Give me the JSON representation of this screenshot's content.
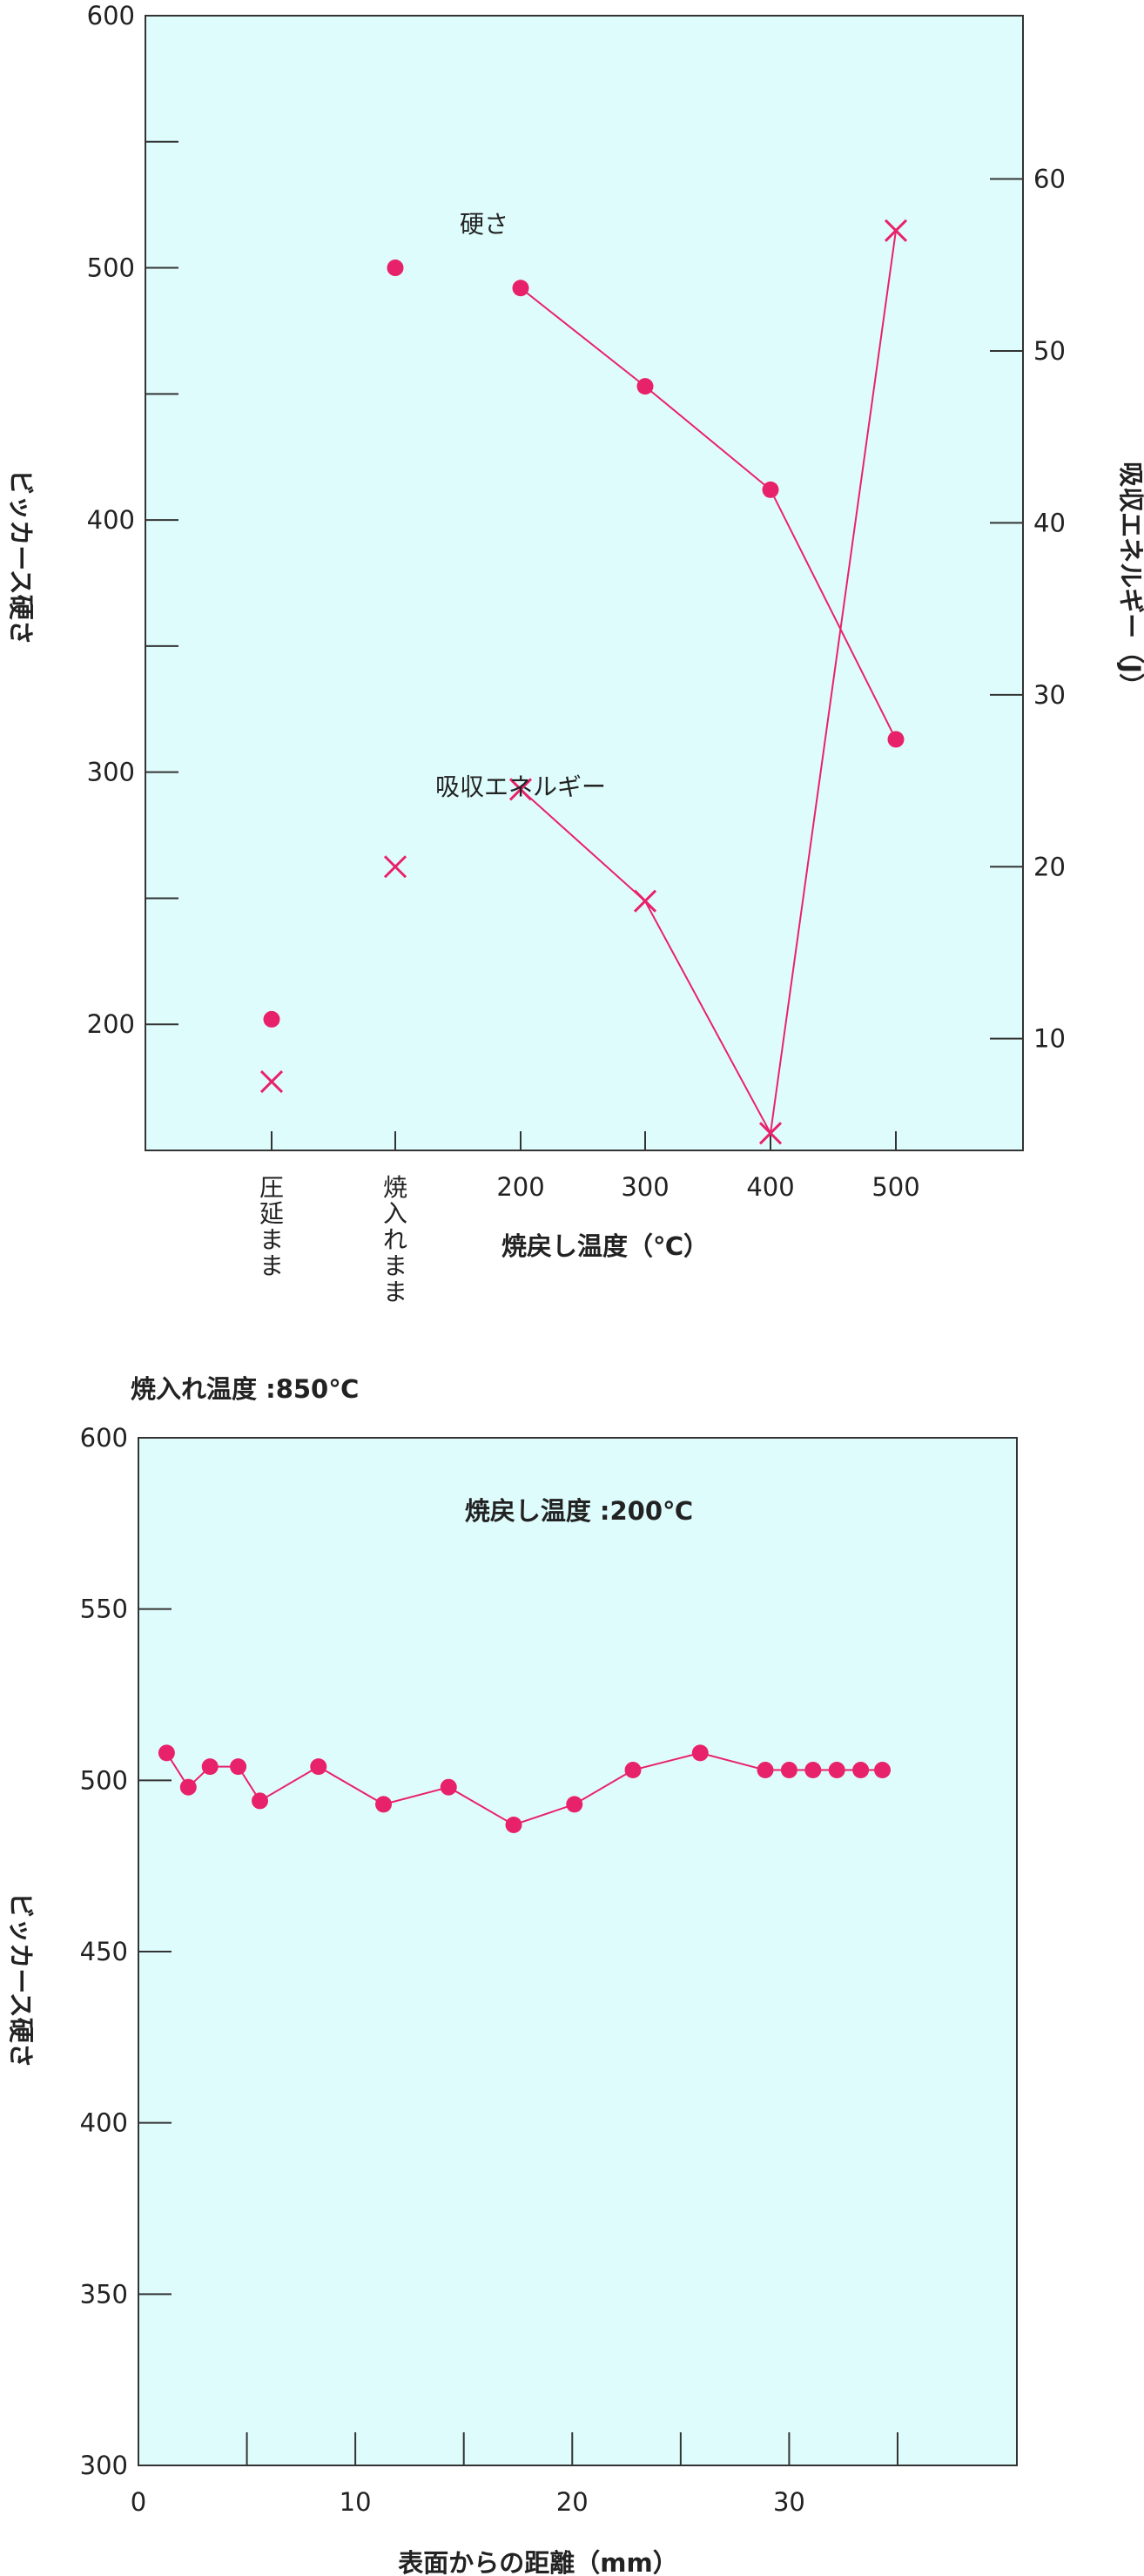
{
  "colors": {
    "plot_background": "#dffcfc",
    "series": "#e8226a",
    "axis": "#333333",
    "text": "#222222"
  },
  "chart_data": [
    {
      "type": "line",
      "x_axis": {
        "label": "焼戻し温度（℃）",
        "categories": [
          "圧延まま",
          "焼入れまま",
          "200",
          "300",
          "400",
          "500"
        ]
      },
      "y_axis_left": {
        "label": "ビッカース硬さ",
        "range": [
          150,
          600
        ],
        "ticks": [
          200,
          300,
          400,
          500,
          600
        ],
        "tick_labels": [
          "200",
          "300",
          "400",
          "500",
          "600"
        ],
        "minor_ticks": [
          250,
          350,
          450,
          550
        ]
      },
      "y_axis_right": {
        "label": "吸収エネルギー（J）",
        "range": [
          3.5,
          69.5
        ],
        "ticks": [
          10,
          20,
          30,
          40,
          50,
          60
        ],
        "tick_labels": [
          "10",
          "20",
          "30",
          "40",
          "50",
          "60"
        ]
      },
      "grid": false,
      "series": [
        {
          "name": "硬さ",
          "axis": "left",
          "marker": "circle",
          "points": [
            {
              "category": "圧延まま",
              "value": 202,
              "connected": false
            },
            {
              "category": "焼入れまま",
              "value": 500,
              "connected": false
            },
            {
              "category": "200",
              "value": 492,
              "connected": true
            },
            {
              "category": "300",
              "value": 453,
              "connected": true
            },
            {
              "category": "400",
              "value": 412,
              "connected": true
            },
            {
              "category": "500",
              "value": 313,
              "connected": true
            }
          ]
        },
        {
          "name": "吸収エネルギー",
          "axis": "right",
          "marker": "cross",
          "points": [
            {
              "category": "圧延まま",
              "value": 7.5,
              "connected": false
            },
            {
              "category": "焼入れまま",
              "value": 20,
              "connected": false
            },
            {
              "category": "200",
              "value": 24.5,
              "connected": true
            },
            {
              "category": "300",
              "value": 18,
              "connected": true
            },
            {
              "category": "400",
              "value": 4.5,
              "connected": true
            },
            {
              "category": "500",
              "value": 57,
              "connected": true
            }
          ]
        }
      ]
    },
    {
      "type": "line",
      "header": "焼入れ温度 :850℃",
      "annotation": "焼戻し温度 :200℃",
      "x_axis": {
        "label": "表面からの距離（mm）",
        "range": [
          0,
          40.5
        ],
        "ticks": [
          0,
          10,
          20,
          30
        ],
        "tick_labels": [
          "0",
          "10",
          "20",
          "30"
        ],
        "minor_ticks": [
          5,
          15,
          25,
          35
        ]
      },
      "y_axis": {
        "label": "ビッカース硬さ",
        "range": [
          300,
          600
        ],
        "ticks": [
          300,
          350,
          400,
          450,
          500,
          550,
          600
        ],
        "tick_labels": [
          "300",
          "350",
          "400",
          "450",
          "500",
          "550",
          "600"
        ]
      },
      "grid": false,
      "series": [
        {
          "name": "",
          "marker": "circle",
          "x": [
            1.3,
            2.3,
            3.3,
            4.6,
            5.6,
            8.3,
            11.3,
            14.3,
            17.3,
            20.1,
            22.8,
            25.9,
            28.9,
            30.0,
            31.1,
            32.2,
            33.3,
            34.3
          ],
          "y": [
            508,
            498,
            504,
            504,
            494,
            504,
            493,
            498,
            487,
            493,
            503,
            508,
            503,
            503,
            503,
            503,
            503,
            503
          ]
        }
      ]
    }
  ]
}
